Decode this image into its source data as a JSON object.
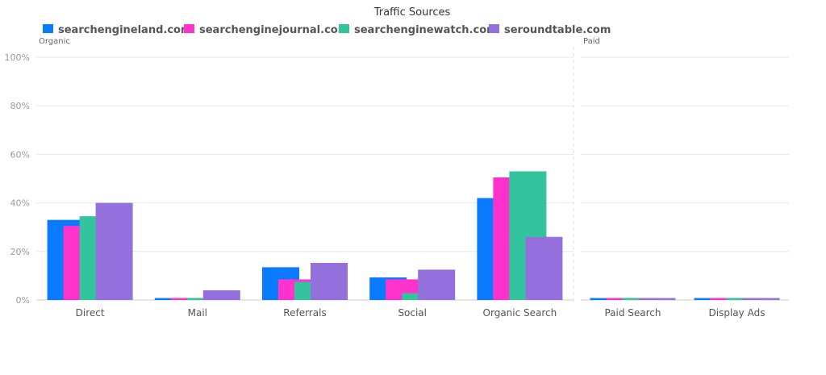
{
  "chart_data": {
    "type": "bar",
    "title": "Traffic Sources",
    "ylim": [
      0,
      100
    ],
    "yticks": [
      0,
      20,
      40,
      60,
      80,
      100
    ],
    "ytick_suffix": "%",
    "grid": true,
    "legend_position": "top-left",
    "series": [
      {
        "name": "searchengineland.com",
        "color": "#0a7bff",
        "values": [
          33,
          0.8,
          13.5,
          9.3,
          42,
          0.8,
          0.8
        ]
      },
      {
        "name": "searchenginejournal.com",
        "color": "#ff33cc",
        "values": [
          30.5,
          0.8,
          8.5,
          8.5,
          50.5,
          0.8,
          0.8
        ]
      },
      {
        "name": "searchenginewatch.com",
        "color": "#33c49e",
        "values": [
          34.5,
          0.8,
          7.5,
          2.8,
          53,
          0.8,
          0.8
        ]
      },
      {
        "name": "seroundtable.com",
        "color": "#9370db",
        "values": [
          40,
          4,
          15.3,
          12.5,
          26,
          0.8,
          0.8
        ]
      }
    ],
    "groups": [
      {
        "label": "Organic",
        "categories": [
          "Direct",
          "Mail",
          "Referrals",
          "Social",
          "Organic Search"
        ]
      },
      {
        "label": "Paid",
        "categories": [
          "Paid Search",
          "Display Ads"
        ]
      }
    ]
  }
}
